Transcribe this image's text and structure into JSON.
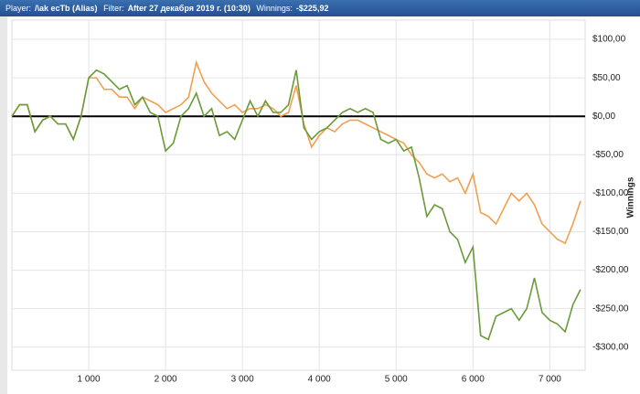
{
  "header": {
    "player_label": "Player:",
    "player": "/\\ak ecTb (Alias)",
    "filter_label": "Filter:",
    "filter": "After 27 декабря 2019 г. (10:30)",
    "winnings_label": "Winnings:",
    "winnings": "-$225,92"
  },
  "chart_data": {
    "type": "line",
    "y_label": "Winnings",
    "x": [
      0,
      100,
      200,
      300,
      400,
      500,
      600,
      700,
      800,
      900,
      1000,
      1100,
      1200,
      1300,
      1400,
      1500,
      1600,
      1700,
      1800,
      1900,
      2000,
      2100,
      2200,
      2300,
      2400,
      2500,
      2600,
      2700,
      2800,
      2900,
      3000,
      3100,
      3200,
      3300,
      3400,
      3500,
      3600,
      3700,
      3800,
      3900,
      4000,
      4100,
      4200,
      4300,
      4400,
      4500,
      4600,
      4700,
      4800,
      4900,
      5000,
      5100,
      5200,
      5300,
      5400,
      5500,
      5600,
      5700,
      5800,
      5900,
      6000,
      6100,
      6200,
      6300,
      6400,
      6500,
      6600,
      6700,
      6800,
      6900,
      7000,
      7100,
      7200,
      7300,
      7400
    ],
    "series": [
      {
        "color": "#f0a050",
        "values": [
          0,
          15,
          15,
          -20,
          -5,
          0,
          -10,
          -10,
          -30,
          0,
          50,
          50,
          35,
          35,
          25,
          25,
          10,
          25,
          20,
          15,
          5,
          10,
          15,
          25,
          70,
          45,
          30,
          20,
          10,
          15,
          5,
          10,
          10,
          15,
          10,
          0,
          5,
          40,
          -10,
          -40,
          -25,
          -15,
          -20,
          -10,
          -5,
          -5,
          -10,
          -15,
          -20,
          -25,
          -30,
          -35,
          -50,
          -60,
          -75,
          -80,
          -75,
          -85,
          -80,
          -100,
          -75,
          -125,
          -130,
          -140,
          -120,
          -100,
          -110,
          -100,
          -115,
          -140,
          -150,
          -160,
          -165,
          -140,
          -110
        ]
      },
      {
        "color": "#6a9a3a",
        "values": [
          0,
          15,
          15,
          -20,
          -5,
          0,
          -10,
          -10,
          -30,
          0,
          50,
          60,
          55,
          45,
          35,
          40,
          15,
          25,
          5,
          0,
          -45,
          -35,
          0,
          10,
          30,
          0,
          10,
          -25,
          -20,
          -30,
          -5,
          20,
          0,
          20,
          5,
          5,
          15,
          60,
          -15,
          -30,
          -20,
          -15,
          -5,
          5,
          10,
          5,
          10,
          5,
          -30,
          -35,
          -30,
          -45,
          -40,
          -80,
          -130,
          -115,
          -120,
          -150,
          -160,
          -190,
          -170,
          -285,
          -290,
          -260,
          -255,
          -250,
          -265,
          -250,
          -210,
          -255,
          -265,
          -270,
          -280,
          -245,
          -225
        ]
      }
    ],
    "xlim": [
      0,
      7460
    ],
    "ylim": [
      -330,
      125
    ],
    "xticks": [
      {
        "value": 1000,
        "label": "1 000"
      },
      {
        "value": 2000,
        "label": "2 000"
      },
      {
        "value": 3000,
        "label": "3 000"
      },
      {
        "value": 4000,
        "label": "4 000"
      },
      {
        "value": 5000,
        "label": "5 000"
      },
      {
        "value": 6000,
        "label": "6 000"
      },
      {
        "value": 7000,
        "label": "7 000"
      }
    ],
    "yticks": [
      {
        "value": -300,
        "label": "-$300,00"
      },
      {
        "value": -250,
        "label": "-$250,00"
      },
      {
        "value": -200,
        "label": "-$200,00"
      },
      {
        "value": -150,
        "label": "-$150,00"
      },
      {
        "value": -100,
        "label": "-$100,00"
      },
      {
        "value": -50,
        "label": "-$50,00"
      },
      {
        "value": 0,
        "label": "$0,00"
      },
      {
        "value": 50,
        "label": "$50,00"
      },
      {
        "value": 100,
        "label": "$100,00"
      }
    ],
    "grid": true
  }
}
